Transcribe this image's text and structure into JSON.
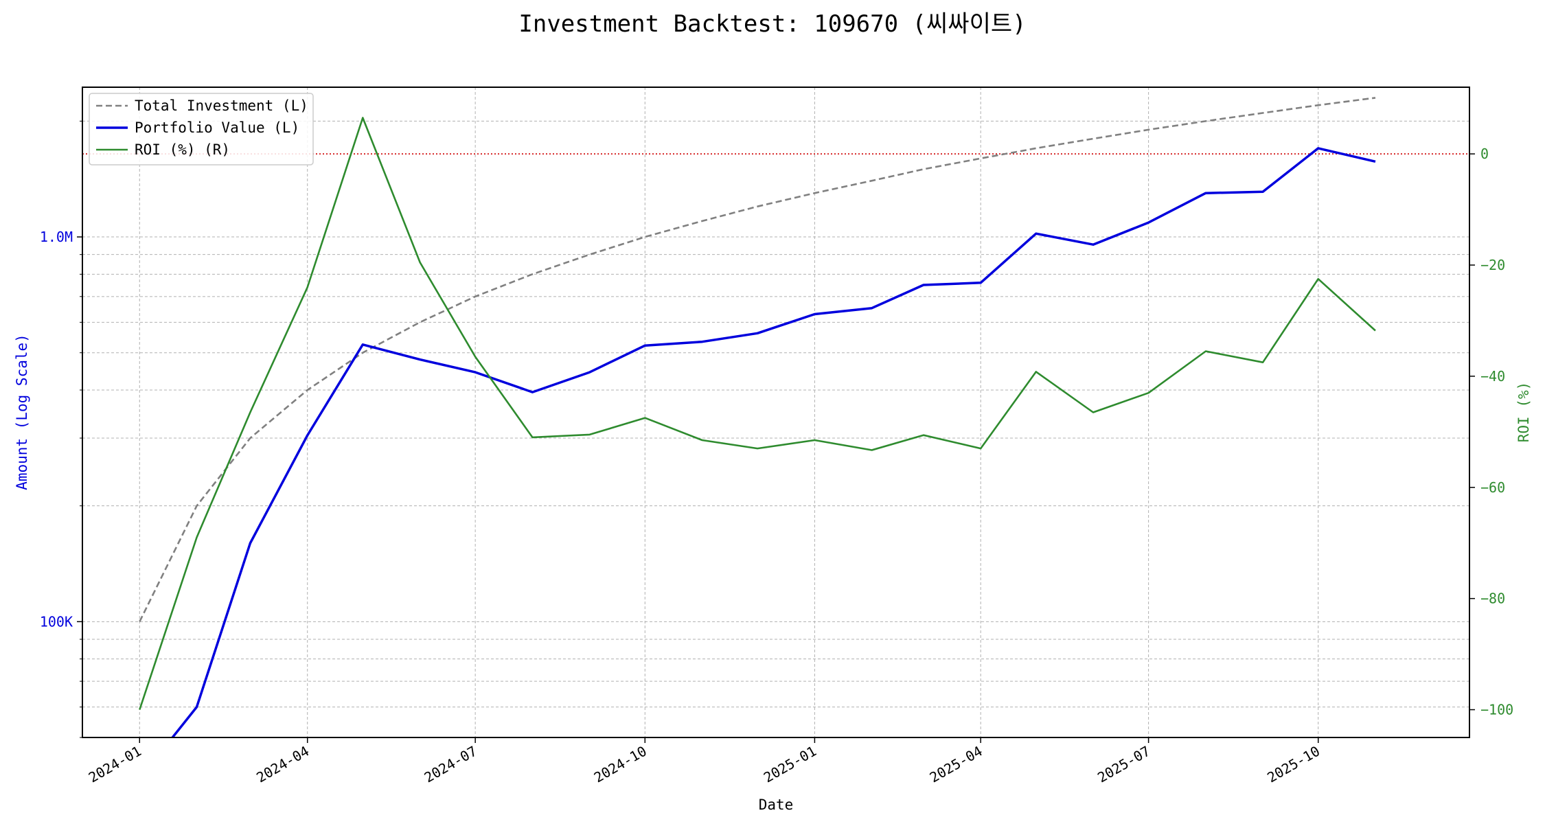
{
  "chart_data": {
    "type": "line",
    "title": "Investment Backtest: 109670 (씨싸이트)",
    "xlabel": "Date",
    "ylabel_left": "Amount (Log Scale)",
    "ylabel_right": "ROI (%)",
    "y_left_scale": "log",
    "y_left_range": [
      50000,
      2450000
    ],
    "y_left_ticks": [
      {
        "value": 100000,
        "label": "100K"
      },
      {
        "value": 1000000,
        "label": "1.0M"
      }
    ],
    "y_right_range": [
      -105,
      12
    ],
    "y_right_ticks": [
      0,
      -20,
      -40,
      -60,
      -80,
      -100
    ],
    "x_range": [
      "2023-12-01",
      "2025-12-22"
    ],
    "x_ticks": [
      {
        "value": "2024-01-01",
        "label": "2024-01"
      },
      {
        "value": "2024-04-01",
        "label": "2024-04"
      },
      {
        "value": "2024-07-01",
        "label": "2024-07"
      },
      {
        "value": "2024-10-01",
        "label": "2024-10"
      },
      {
        "value": "2025-01-01",
        "label": "2025-01"
      },
      {
        "value": "2025-04-01",
        "label": "2025-04"
      },
      {
        "value": "2025-07-01",
        "label": "2025-07"
      },
      {
        "value": "2025-10-01",
        "label": "2025-10"
      }
    ],
    "grid": true,
    "legend_position": "top-left",
    "reference_line": {
      "axis": "right",
      "value": 0,
      "color": "#d62728",
      "style": "dotted"
    },
    "dates": [
      "2024-01-01",
      "2024-02-01",
      "2024-03-01",
      "2024-04-01",
      "2024-05-01",
      "2024-06-01",
      "2024-07-01",
      "2024-08-01",
      "2024-09-01",
      "2024-10-01",
      "2024-11-01",
      "2024-12-01",
      "2025-01-01",
      "2025-02-01",
      "2025-03-01",
      "2025-04-01",
      "2025-05-01",
      "2025-06-01",
      "2025-07-01",
      "2025-08-01",
      "2025-09-01",
      "2025-10-01",
      "2025-11-01"
    ],
    "series": [
      {
        "name": "Total Investment (L)",
        "axis": "left",
        "color": "#808080",
        "dash": "dashed",
        "values": [
          100000,
          200000,
          300000,
          400000,
          500000,
          600000,
          700000,
          800000,
          900000,
          1000000,
          1100000,
          1200000,
          1300000,
          1400000,
          1500000,
          1600000,
          1700000,
          1800000,
          1900000,
          2000000,
          2100000,
          2200000,
          2300000
        ]
      },
      {
        "name": "Portfolio Value (L)",
        "axis": "left",
        "color": "#0000dd",
        "dash": "solid",
        "values": [
          0,
          60000,
          160000,
          305000,
          525000,
          480000,
          445000,
          395000,
          445000,
          522000,
          534000,
          562000,
          630000,
          653000,
          750000,
          760000,
          1020000,
          955000,
          1090000,
          1300000,
          1310000,
          1700000,
          1570000
        ]
      },
      {
        "name": "ROI (%) (R)",
        "axis": "right",
        "color": "#2e8b2e",
        "dash": "solid",
        "values": [
          -100,
          -69,
          -46.5,
          -24,
          6.5,
          -19.5,
          -36.5,
          -51,
          -50.5,
          -47.5,
          -51.5,
          -53,
          -51.5,
          -53.3,
          -50.6,
          -53,
          -39.2,
          -46.5,
          -43,
          -35.5,
          -37.5,
          -22.5,
          -31.8
        ]
      }
    ]
  }
}
